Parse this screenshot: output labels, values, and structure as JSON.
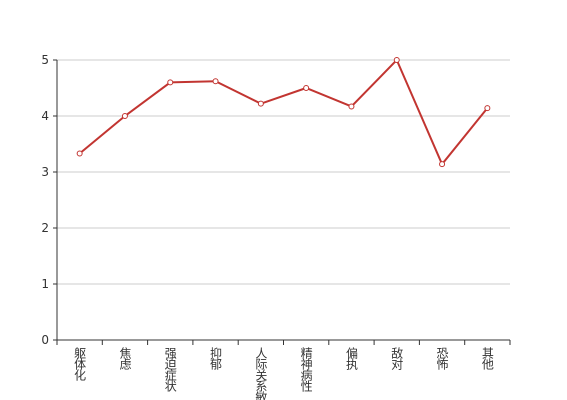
{
  "chart_data": {
    "type": "line",
    "categories": [
      "躯体化",
      "焦虑",
      "强迫症状",
      "抑郁",
      "人际关系敏感",
      "精神病性",
      "偏执",
      "敌对",
      "恐怖",
      "其他"
    ],
    "values": [
      3.33,
      4.0,
      4.6,
      4.62,
      4.22,
      4.5,
      4.17,
      5.0,
      3.14,
      4.14
    ],
    "color": "#c23531",
    "ylim": [
      0,
      5
    ],
    "yticks": [
      0,
      1,
      2,
      3,
      4,
      5
    ],
    "grid": true
  }
}
